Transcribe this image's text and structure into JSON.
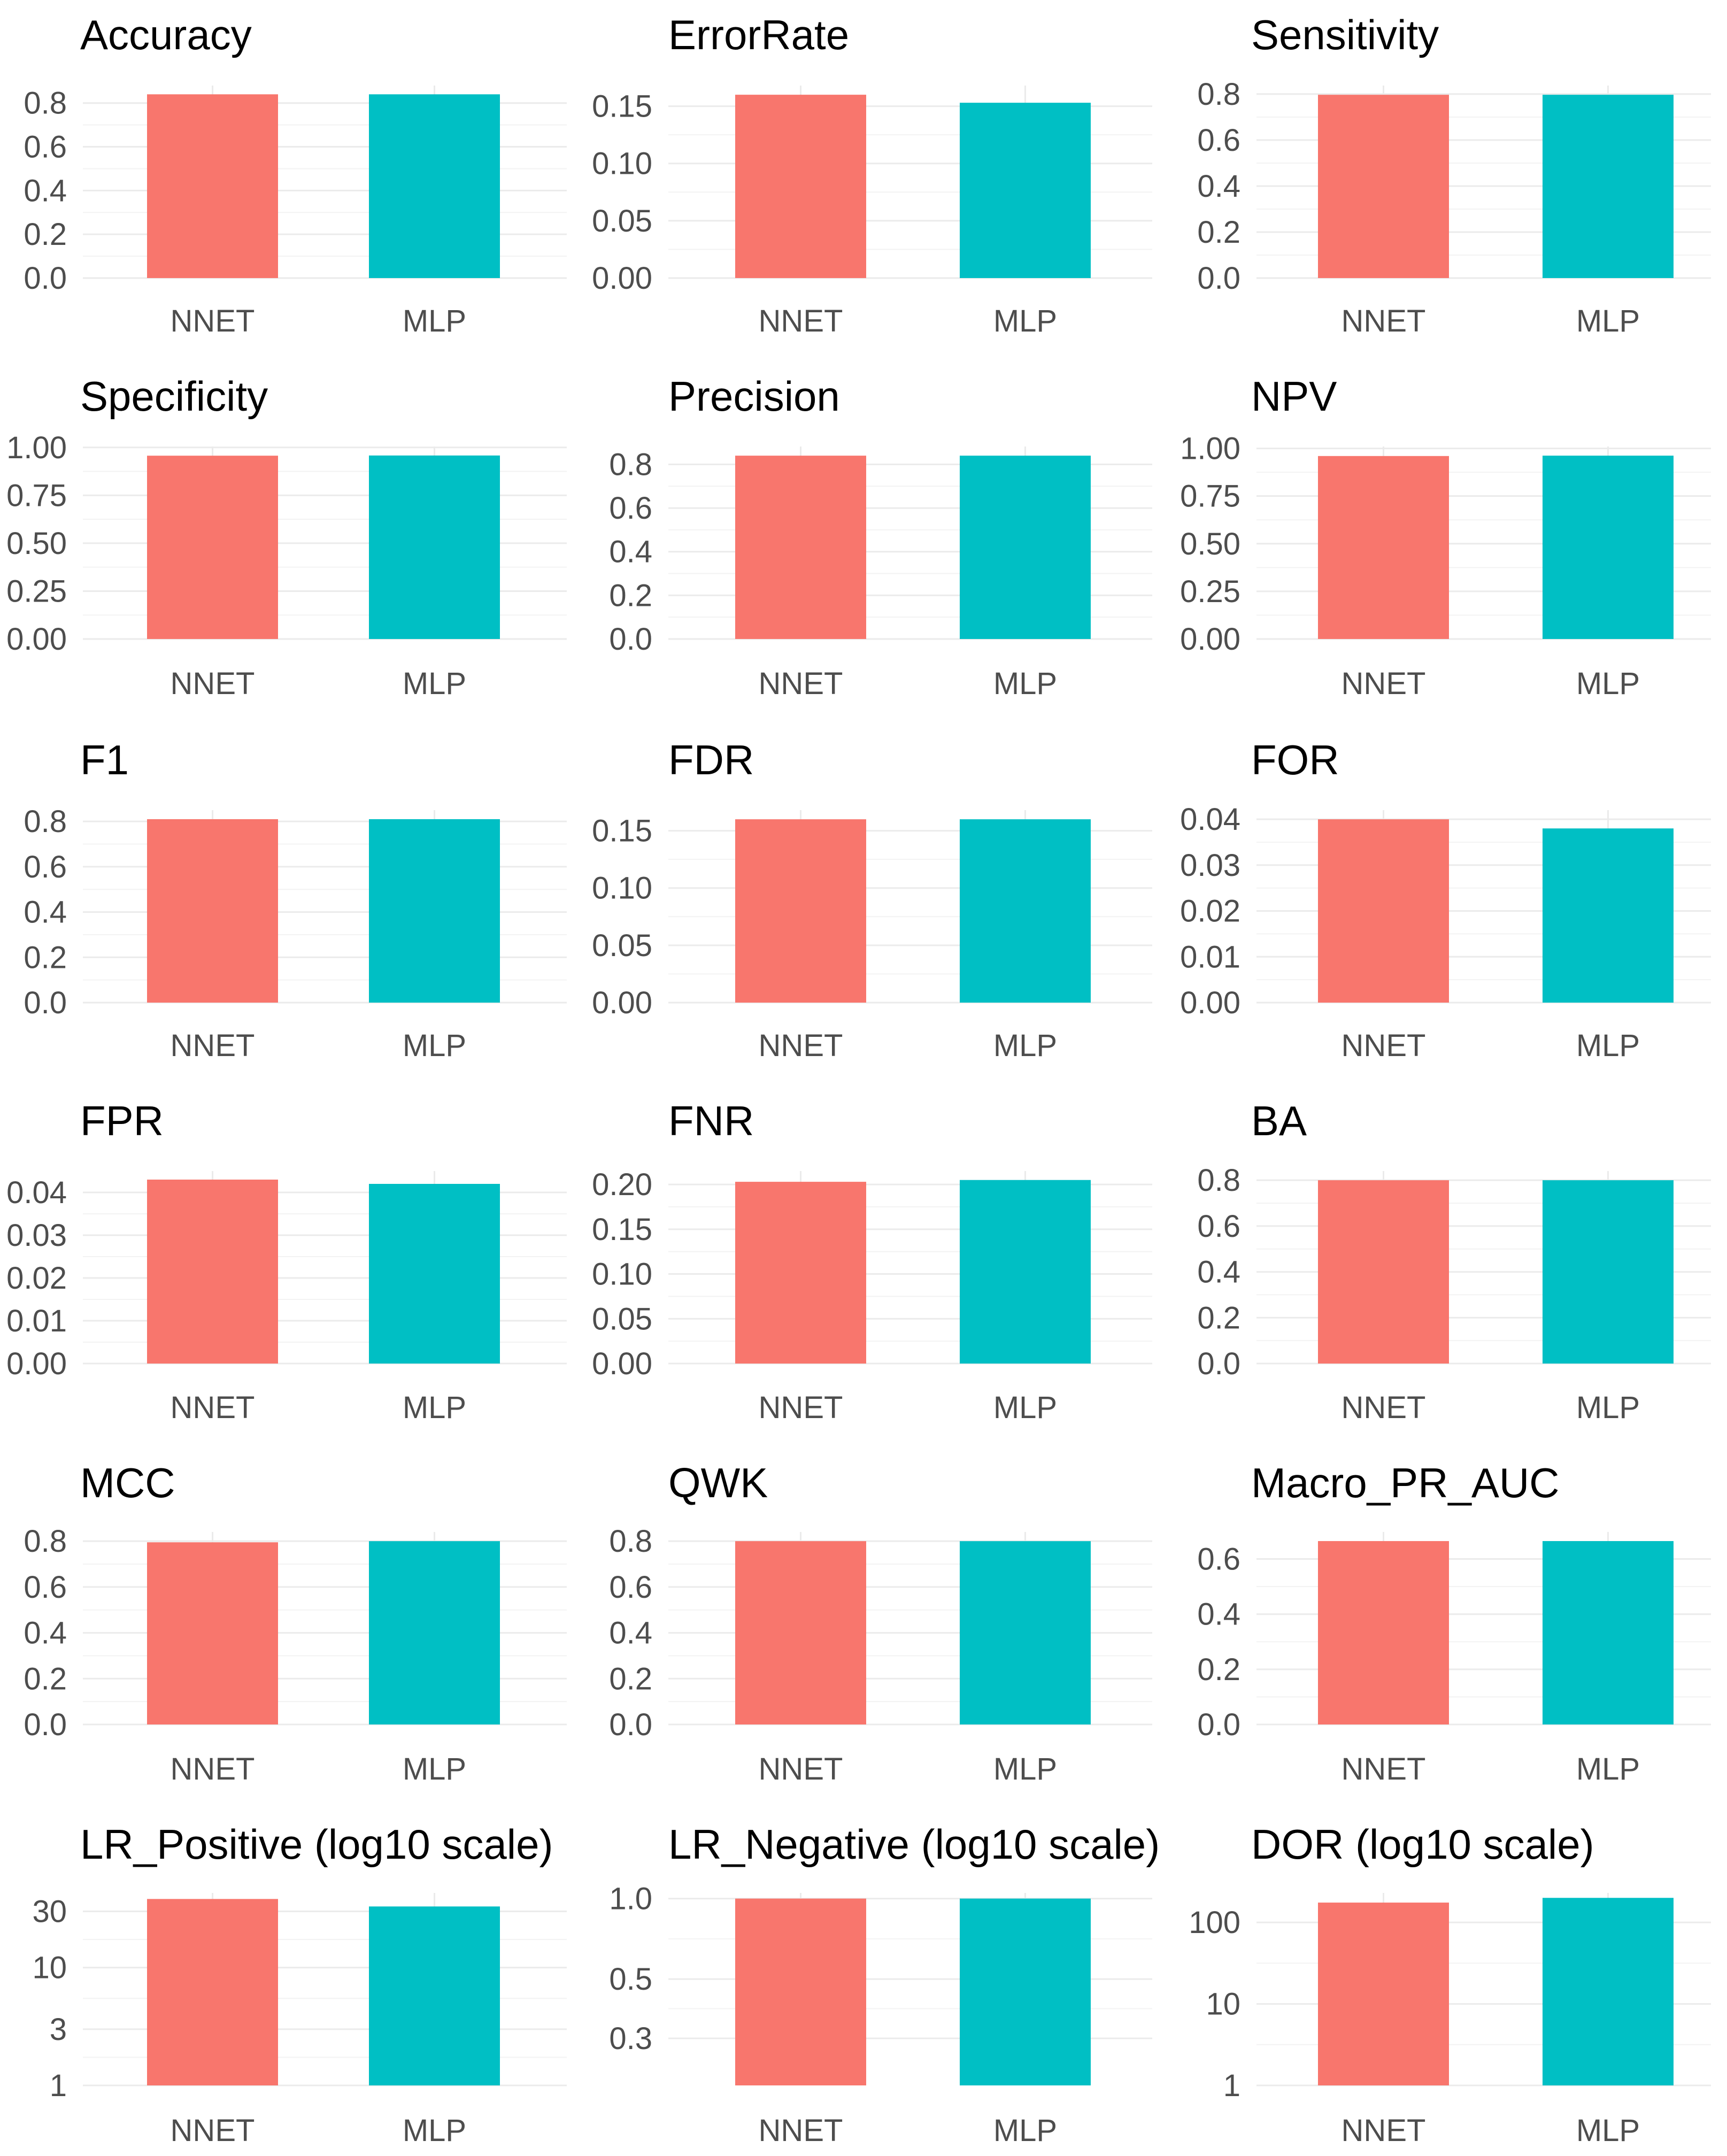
{
  "colors": {
    "NNET": "#F8766D",
    "MLP": "#00BFC4"
  },
  "chart_data": [
    {
      "type": "bar",
      "title": "Accuracy",
      "categories": [
        "NNET",
        "MLP"
      ],
      "values": [
        0.84,
        0.84
      ],
      "ylim": [
        0,
        0.88
      ],
      "yticks": [
        0,
        0.2,
        0.4,
        0.6,
        0.8
      ],
      "ytick_labels": [
        "0.0",
        "0.2",
        "0.4",
        "0.6",
        "0.8"
      ],
      "grid": true
    },
    {
      "type": "bar",
      "title": "ErrorRate",
      "categories": [
        "NNET",
        "MLP"
      ],
      "values": [
        0.16,
        0.153
      ],
      "ylim": [
        0,
        0.168
      ],
      "yticks": [
        0,
        0.05,
        0.1,
        0.15
      ],
      "ytick_labels": [
        "0.00",
        "0.05",
        "0.10",
        "0.15"
      ],
      "grid": true
    },
    {
      "type": "bar",
      "title": "Sensitivity",
      "categories": [
        "NNET",
        "MLP"
      ],
      "values": [
        0.797,
        0.797
      ],
      "ylim": [
        0,
        0.837
      ],
      "yticks": [
        0,
        0.2,
        0.4,
        0.6,
        0.8
      ],
      "ytick_labels": [
        "0.0",
        "0.2",
        "0.4",
        "0.6",
        "0.8"
      ],
      "grid": true
    },
    {
      "type": "bar",
      "title": "Specificity",
      "categories": [
        "NNET",
        "MLP"
      ],
      "values": [
        0.957,
        0.958
      ],
      "ylim": [
        0,
        1.005
      ],
      "yticks": [
        0,
        0.25,
        0.5,
        0.75,
        1
      ],
      "ytick_labels": [
        "0.00",
        "0.25",
        "0.50",
        "0.75",
        "1.00"
      ],
      "grid": true
    },
    {
      "type": "bar",
      "title": "Precision",
      "categories": [
        "NNET",
        "MLP"
      ],
      "values": [
        0.84,
        0.84
      ],
      "ylim": [
        0,
        0.882
      ],
      "yticks": [
        0,
        0.2,
        0.4,
        0.6,
        0.8
      ],
      "ytick_labels": [
        "0.0",
        "0.2",
        "0.4",
        "0.6",
        "0.8"
      ],
      "grid": true
    },
    {
      "type": "bar",
      "title": "NPV",
      "categories": [
        "NNET",
        "MLP"
      ],
      "values": [
        0.96,
        0.962
      ],
      "ylim": [
        0,
        1.01
      ],
      "yticks": [
        0,
        0.25,
        0.5,
        0.75,
        1
      ],
      "ytick_labels": [
        "0.00",
        "0.25",
        "0.50",
        "0.75",
        "1.00"
      ],
      "grid": true
    },
    {
      "type": "bar",
      "title": "F1",
      "categories": [
        "NNET",
        "MLP"
      ],
      "values": [
        0.81,
        0.81
      ],
      "ylim": [
        0,
        0.85
      ],
      "yticks": [
        0,
        0.2,
        0.4,
        0.6,
        0.8
      ],
      "ytick_labels": [
        "0.0",
        "0.2",
        "0.4",
        "0.6",
        "0.8"
      ],
      "grid": true
    },
    {
      "type": "bar",
      "title": "FDR",
      "categories": [
        "NNET",
        "MLP"
      ],
      "values": [
        0.16,
        0.16
      ],
      "ylim": [
        0,
        0.168
      ],
      "yticks": [
        0,
        0.05,
        0.1,
        0.15
      ],
      "ytick_labels": [
        "0.00",
        "0.05",
        "0.10",
        "0.15"
      ],
      "grid": true
    },
    {
      "type": "bar",
      "title": "FOR",
      "categories": [
        "NNET",
        "MLP"
      ],
      "values": [
        0.04,
        0.038
      ],
      "ylim": [
        0,
        0.042
      ],
      "yticks": [
        0,
        0.01,
        0.02,
        0.03,
        0.04
      ],
      "ytick_labels": [
        "0.00",
        "0.01",
        "0.02",
        "0.03",
        "0.04"
      ],
      "grid": true
    },
    {
      "type": "bar",
      "title": "FPR",
      "categories": [
        "NNET",
        "MLP"
      ],
      "values": [
        0.043,
        0.042
      ],
      "ylim": [
        0,
        0.045
      ],
      "yticks": [
        0,
        0.01,
        0.02,
        0.03,
        0.04
      ],
      "ytick_labels": [
        "0.00",
        "0.01",
        "0.02",
        "0.03",
        "0.04"
      ],
      "grid": true
    },
    {
      "type": "bar",
      "title": "FNR",
      "categories": [
        "NNET",
        "MLP"
      ],
      "values": [
        0.203,
        0.205
      ],
      "ylim": [
        0,
        0.215
      ],
      "yticks": [
        0,
        0.05,
        0.1,
        0.15,
        0.2
      ],
      "ytick_labels": [
        "0.00",
        "0.05",
        "0.10",
        "0.15",
        "0.20"
      ],
      "grid": true
    },
    {
      "type": "bar",
      "title": "BA",
      "categories": [
        "NNET",
        "MLP"
      ],
      "values": [
        0.8,
        0.8
      ],
      "ylim": [
        0,
        0.84
      ],
      "yticks": [
        0,
        0.2,
        0.4,
        0.6,
        0.8
      ],
      "ytick_labels": [
        "0.0",
        "0.2",
        "0.4",
        "0.6",
        "0.8"
      ],
      "grid": true
    },
    {
      "type": "bar",
      "title": "MCC",
      "categories": [
        "NNET",
        "MLP"
      ],
      "values": [
        0.795,
        0.8
      ],
      "ylim": [
        0,
        0.84
      ],
      "yticks": [
        0,
        0.2,
        0.4,
        0.6,
        0.8
      ],
      "ytick_labels": [
        "0.0",
        "0.2",
        "0.4",
        "0.6",
        "0.8"
      ],
      "grid": true
    },
    {
      "type": "bar",
      "title": "QWK",
      "categories": [
        "NNET",
        "MLP"
      ],
      "values": [
        0.8,
        0.8
      ],
      "ylim": [
        0,
        0.84
      ],
      "yticks": [
        0,
        0.2,
        0.4,
        0.6,
        0.8
      ],
      "ytick_labels": [
        "0.0",
        "0.2",
        "0.4",
        "0.6",
        "0.8"
      ],
      "grid": true
    },
    {
      "type": "bar",
      "title": "Macro_PR_AUC",
      "categories": [
        "NNET",
        "MLP"
      ],
      "values": [
        0.665,
        0.665
      ],
      "ylim": [
        0,
        0.698
      ],
      "yticks": [
        0,
        0.2,
        0.4,
        0.6
      ],
      "ytick_labels": [
        "0.0",
        "0.2",
        "0.4",
        "0.6"
      ],
      "grid": true
    },
    {
      "type": "bar",
      "title": "LR_Positive (log10 scale)",
      "categories": [
        "NNET",
        "MLP"
      ],
      "values": [
        38.2,
        33
      ],
      "log_scale": true,
      "ylim": [
        1,
        43
      ],
      "yticks": [
        1,
        3,
        10,
        30
      ],
      "ytick_labels": [
        "1",
        "3",
        "10",
        "30"
      ],
      "grid": true
    },
    {
      "type": "bar",
      "title": "LR_Negative (log10 scale)",
      "categories": [
        "NNET",
        "MLP"
      ],
      "values": [
        1.0,
        1.0
      ],
      "log_scale": true,
      "ylim": [
        0.2,
        1.05
      ],
      "bar_base": 0.2,
      "yticks": [
        0.3,
        0.5,
        1
      ],
      "ytick_labels": [
        "0.3",
        "0.5",
        "1.0"
      ],
      "grid": true
    },
    {
      "type": "bar",
      "title": "DOR (log10 scale)",
      "categories": [
        "NNET",
        "MLP"
      ],
      "values": [
        175,
        200
      ],
      "log_scale": true,
      "ylim": [
        1,
        230
      ],
      "yticks": [
        1,
        10,
        100
      ],
      "ytick_labels": [
        "1",
        "10",
        "100"
      ],
      "grid": true
    }
  ]
}
